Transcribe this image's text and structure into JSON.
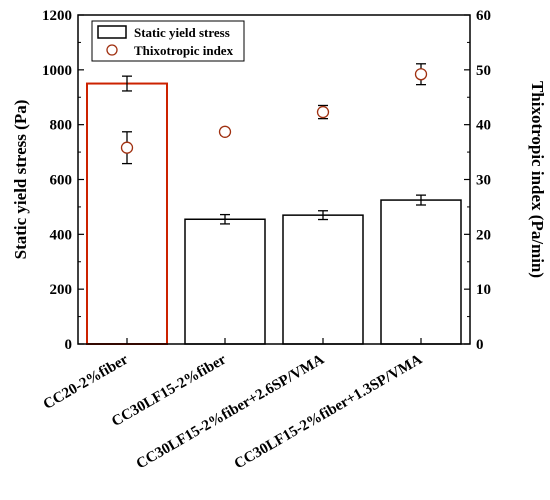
{
  "chart_data": {
    "type": "bar",
    "categories": [
      "CC20-2%fiber",
      "CC30LF15-2%fiber",
      "CC30LF15-2%fiber+2.6SP/VMA",
      "CC30LF15-2%fiber+1.3SP/VMA"
    ],
    "ylabel": "Static yield stress (Pa)",
    "ylim": [
      0,
      1200
    ],
    "yticks": [
      0,
      200,
      400,
      600,
      800,
      1000,
      1200
    ],
    "y2label": "Thixotropic index (Pa/min)",
    "y2lim": [
      0,
      60
    ],
    "y2ticks": [
      0,
      10,
      20,
      30,
      40,
      50,
      60
    ],
    "grid": false,
    "legend_position": "top-left",
    "series": [
      {
        "name": "Static yield stress",
        "kind": "bar",
        "axis": "left",
        "values": [
          950,
          455,
          470,
          525
        ],
        "errors": [
          27,
          17,
          16,
          18
        ],
        "edge_colors": [
          "#cc2200",
          "#000000",
          "#000000",
          "#000000"
        ]
      },
      {
        "name": "Thixotropic index",
        "kind": "scatter",
        "axis": "right",
        "values": [
          35.8,
          38.7,
          42.3,
          49.2
        ],
        "errors": [
          2.9,
          0.6,
          1.2,
          1.9
        ],
        "marker_edge": "#a03010"
      }
    ]
  }
}
